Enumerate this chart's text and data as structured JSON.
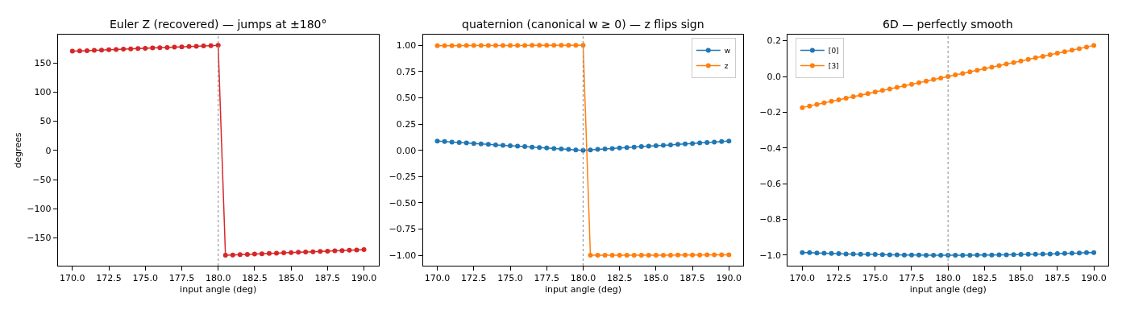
{
  "chart_data": [
    {
      "type": "line",
      "title": "Euler Z (recovered) — jumps at ±180°",
      "xlabel": "input angle (deg)",
      "ylabel": "degrees",
      "marker": "circle",
      "legend": false,
      "x": [
        170,
        170.5,
        171,
        171.5,
        172,
        172.5,
        173,
        173.5,
        174,
        174.5,
        175,
        175.5,
        176,
        176.5,
        177,
        177.5,
        178,
        178.5,
        179,
        179.5,
        180,
        180.5,
        181,
        181.5,
        182,
        182.5,
        183,
        183.5,
        184,
        184.5,
        185,
        185.5,
        186,
        186.5,
        187,
        187.5,
        188,
        188.5,
        189,
        189.5,
        190
      ],
      "series": [
        {
          "color": "#d62728",
          "values": [
            170,
            170.5,
            171,
            171.5,
            172,
            172.5,
            173,
            173.5,
            174,
            174.5,
            175,
            175.5,
            176,
            176.5,
            177,
            177.5,
            178,
            178.5,
            179,
            179.5,
            180,
            -179.5,
            -179,
            -178.5,
            -178,
            -177.5,
            -177,
            -176.5,
            -176,
            -175.5,
            -175,
            -174.5,
            -174,
            -173.5,
            -173,
            -172.5,
            -172,
            -171.5,
            -171,
            -170.5,
            -170
          ]
        }
      ],
      "xlim": [
        169,
        191
      ],
      "xticks": [
        {
          "value": 170,
          "label": "170.0"
        },
        {
          "value": 172.5,
          "label": "172.5"
        },
        {
          "value": 175,
          "label": "175.0"
        },
        {
          "value": 177.5,
          "label": "177.5"
        },
        {
          "value": 180,
          "label": "180.0"
        },
        {
          "value": 182.5,
          "label": "182.5"
        },
        {
          "value": 185,
          "label": "185.0"
        },
        {
          "value": 187.5,
          "label": "187.5"
        },
        {
          "value": 190,
          "label": "190.0"
        }
      ],
      "ylim": [
        -197.5,
        198
      ],
      "yticks": [
        {
          "value": -150,
          "label": "−150"
        },
        {
          "value": -100,
          "label": "−100"
        },
        {
          "value": -50,
          "label": "−50"
        },
        0,
        50,
        100,
        150
      ],
      "ref_lines": [
        {
          "axis": "x",
          "value": 180,
          "color": "#999999",
          "line_style": "dotted"
        }
      ]
    },
    {
      "type": "line",
      "title": "quaternion (canonical w ≥ 0) — z flips sign",
      "xlabel": "input angle (deg)",
      "marker": "circle",
      "legend": "top right",
      "x": [
        170,
        170.5,
        171,
        171.5,
        172,
        172.5,
        173,
        173.5,
        174,
        174.5,
        175,
        175.5,
        176,
        176.5,
        177,
        177.5,
        178,
        178.5,
        179,
        179.5,
        180,
        180.5,
        181,
        181.5,
        182,
        182.5,
        183,
        183.5,
        184,
        184.5,
        185,
        185.5,
        186,
        186.5,
        187,
        187.5,
        188,
        188.5,
        189,
        189.5,
        190
      ],
      "series": [
        {
          "name": "w",
          "color": "#1f77b4",
          "values": [
            0.087,
            0.083,
            0.078,
            0.074,
            0.07,
            0.065,
            0.061,
            0.057,
            0.052,
            0.048,
            0.044,
            0.039,
            0.035,
            0.031,
            0.026,
            0.022,
            0.017,
            0.013,
            0.009,
            0.004,
            0.0,
            0.004,
            0.009,
            0.013,
            0.017,
            0.022,
            0.026,
            0.031,
            0.035,
            0.039,
            0.044,
            0.048,
            0.052,
            0.057,
            0.061,
            0.065,
            0.07,
            0.074,
            0.078,
            0.083,
            0.087
          ]
        },
        {
          "name": "z",
          "color": "#ff7f0e",
          "values": [
            0.996,
            0.997,
            0.997,
            0.997,
            0.998,
            0.998,
            0.998,
            0.998,
            0.999,
            0.999,
            0.999,
            0.999,
            0.999,
            1.0,
            1.0,
            1.0,
            1.0,
            1.0,
            1.0,
            1.0,
            1.0,
            -1.0,
            -1.0,
            -1.0,
            -1.0,
            -1.0,
            -1.0,
            -1.0,
            -0.999,
            -0.999,
            -0.999,
            -0.999,
            -0.999,
            -0.998,
            -0.998,
            -0.998,
            -0.998,
            -0.997,
            -0.997,
            -0.997,
            -0.996
          ]
        }
      ],
      "xlim": [
        169,
        191
      ],
      "xticks": [
        {
          "value": 170,
          "label": "170.0"
        },
        {
          "value": 172.5,
          "label": "172.5"
        },
        {
          "value": 175,
          "label": "175.0"
        },
        {
          "value": 177.5,
          "label": "177.5"
        },
        {
          "value": 180,
          "label": "180.0"
        },
        {
          "value": 182.5,
          "label": "182.5"
        },
        {
          "value": 185,
          "label": "185.0"
        },
        {
          "value": 187.5,
          "label": "187.5"
        },
        {
          "value": 190,
          "label": "190.0"
        }
      ],
      "ylim": [
        -1.1,
        1.1
      ],
      "yticks": [
        {
          "value": -1,
          "label": "−1.00"
        },
        {
          "value": -0.75,
          "label": "−0.75"
        },
        {
          "value": -0.5,
          "label": "−0.50"
        },
        {
          "value": -0.25,
          "label": "−0.25"
        },
        {
          "value": 0,
          "label": "0.00"
        },
        0.25,
        {
          "value": 0.5,
          "label": "0.50"
        },
        0.75,
        {
          "value": 1,
          "label": "1.00"
        }
      ],
      "ref_lines": [
        {
          "axis": "x",
          "value": 180,
          "color": "#999999",
          "line_style": "dotted"
        }
      ]
    },
    {
      "type": "line",
      "title": "6D — perfectly smooth",
      "xlabel": "input angle (deg)",
      "marker": "circle",
      "legend": "top left",
      "x": [
        170,
        170.5,
        171,
        171.5,
        172,
        172.5,
        173,
        173.5,
        174,
        174.5,
        175,
        175.5,
        176,
        176.5,
        177,
        177.5,
        178,
        178.5,
        179,
        179.5,
        180,
        180.5,
        181,
        181.5,
        182,
        182.5,
        183,
        183.5,
        184,
        184.5,
        185,
        185.5,
        186,
        186.5,
        187,
        187.5,
        188,
        188.5,
        189,
        189.5,
        190
      ],
      "series": [
        {
          "name": "[0]",
          "color": "#1f77b4",
          "values": [
            -0.985,
            -0.986,
            -0.988,
            -0.989,
            -0.99,
            -0.991,
            -0.993,
            -0.994,
            -0.995,
            -0.995,
            -0.996,
            -0.997,
            -0.998,
            -0.998,
            -0.999,
            -0.999,
            -0.999,
            -1.0,
            -1.0,
            -1.0,
            -1.0,
            -1.0,
            -1.0,
            -1.0,
            -0.999,
            -0.999,
            -0.999,
            -0.998,
            -0.998,
            -0.997,
            -0.996,
            -0.995,
            -0.995,
            -0.994,
            -0.993,
            -0.991,
            -0.99,
            -0.989,
            -0.988,
            -0.986,
            -0.985
          ]
        },
        {
          "name": "[3]",
          "color": "#ff7f0e",
          "values": [
            -0.174,
            -0.165,
            -0.156,
            -0.148,
            -0.139,
            -0.131,
            -0.122,
            -0.113,
            -0.105,
            -0.096,
            -0.087,
            -0.078,
            -0.07,
            -0.061,
            -0.052,
            -0.044,
            -0.035,
            -0.026,
            -0.017,
            -0.009,
            0.0,
            0.009,
            0.017,
            0.026,
            0.035,
            0.044,
            0.052,
            0.061,
            0.07,
            0.078,
            0.087,
            0.096,
            0.105,
            0.113,
            0.122,
            0.131,
            0.139,
            0.148,
            0.156,
            0.165,
            0.174
          ]
        }
      ],
      "xlim": [
        169,
        191
      ],
      "xticks": [
        {
          "value": 170,
          "label": "170.0"
        },
        {
          "value": 172.5,
          "label": "172.5"
        },
        {
          "value": 175,
          "label": "175.0"
        },
        {
          "value": 177.5,
          "label": "177.5"
        },
        {
          "value": 180,
          "label": "180.0"
        },
        {
          "value": 182.5,
          "label": "182.5"
        },
        {
          "value": 185,
          "label": "185.0"
        },
        {
          "value": 187.5,
          "label": "187.5"
        },
        {
          "value": 190,
          "label": "190.0"
        }
      ],
      "ylim": [
        -1.059,
        0.233
      ],
      "yticks": [
        {
          "value": -1,
          "label": "−1.0"
        },
        {
          "value": -0.8,
          "label": "−0.8"
        },
        {
          "value": -0.6,
          "label": "−0.6"
        },
        {
          "value": -0.4,
          "label": "−0.4"
        },
        {
          "value": -0.2,
          "label": "−0.2"
        },
        {
          "value": 0,
          "label": "0.0"
        },
        0.2
      ],
      "ref_lines": [
        {
          "axis": "x",
          "value": 180,
          "color": "#999999",
          "line_style": "dotted"
        }
      ]
    }
  ]
}
